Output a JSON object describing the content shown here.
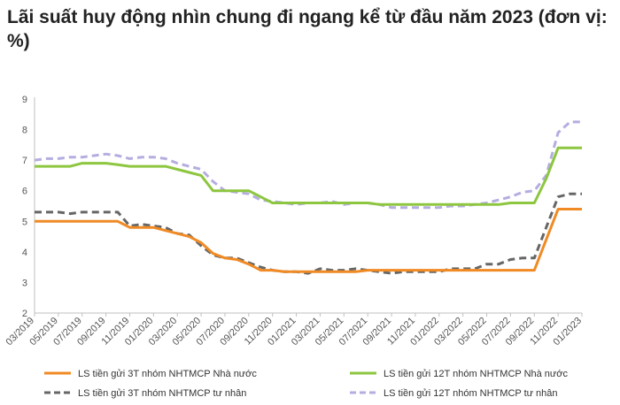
{
  "title": "Lãi suất huy động nhìn chung đi ngang kể từ đầu năm 2023 (đơn vị: %)",
  "chart_data": {
    "type": "line",
    "title": "Lãi suất huy động nhìn chung đi ngang kể từ đầu năm 2023 (đơn vị: %)",
    "xlabel": "",
    "ylabel": "",
    "ylim": [
      2,
      9
    ],
    "yticks": [
      "2",
      "3",
      "4",
      "5",
      "6",
      "7",
      "8",
      "9"
    ],
    "xticks": [
      "03/2019",
      "05/2019",
      "07/2019",
      "09/2019",
      "11/2019",
      "01/2020",
      "03/2020",
      "05/2020",
      "07/2020",
      "09/2020",
      "11/2020",
      "01/2021",
      "03/2021",
      "05/2021",
      "07/2021",
      "09/2021",
      "11/2021",
      "01/2022",
      "03/2022",
      "05/2022",
      "07/2022",
      "09/2022",
      "11/2022",
      "01/2023"
    ],
    "grid": false,
    "legend_position": "bottom",
    "x": [
      "03/2019",
      "04/2019",
      "05/2019",
      "06/2019",
      "07/2019",
      "08/2019",
      "09/2019",
      "10/2019",
      "11/2019",
      "12/2019",
      "01/2020",
      "02/2020",
      "03/2020",
      "04/2020",
      "05/2020",
      "06/2020",
      "07/2020",
      "08/2020",
      "09/2020",
      "10/2020",
      "11/2020",
      "12/2020",
      "01/2021",
      "02/2021",
      "03/2021",
      "04/2021",
      "05/2021",
      "06/2021",
      "07/2021",
      "08/2021",
      "09/2021",
      "10/2021",
      "11/2021",
      "12/2021",
      "01/2022",
      "02/2022",
      "03/2022",
      "04/2022",
      "05/2022",
      "06/2022",
      "07/2022",
      "08/2022",
      "09/2022",
      "10/2022",
      "11/2022",
      "12/2022",
      "01/2023"
    ],
    "series": [
      {
        "name": "LS tiền gửi 3T nhóm NHTMCP Nhà nước",
        "color": "#F08A24",
        "dash": "solid",
        "values": [
          5.0,
          5.0,
          5.0,
          5.0,
          5.0,
          5.0,
          5.0,
          5.0,
          4.8,
          4.8,
          4.8,
          4.7,
          4.6,
          4.5,
          4.3,
          3.95,
          3.8,
          3.75,
          3.6,
          3.4,
          3.4,
          3.35,
          3.35,
          3.35,
          3.35,
          3.35,
          3.35,
          3.35,
          3.4,
          3.4,
          3.4,
          3.4,
          3.4,
          3.4,
          3.4,
          3.4,
          3.4,
          3.4,
          3.4,
          3.4,
          3.4,
          3.4,
          3.4,
          4.4,
          5.4,
          5.4,
          5.4
        ]
      },
      {
        "name": "LS tiền gửi 12T nhóm NHTMCP Nhà nước",
        "color": "#8DC63F",
        "dash": "solid",
        "values": [
          6.8,
          6.8,
          6.8,
          6.8,
          6.9,
          6.9,
          6.9,
          6.85,
          6.8,
          6.8,
          6.8,
          6.8,
          6.7,
          6.6,
          6.5,
          6.0,
          6.0,
          6.0,
          6.0,
          5.8,
          5.6,
          5.6,
          5.6,
          5.6,
          5.6,
          5.6,
          5.6,
          5.6,
          5.6,
          5.55,
          5.55,
          5.55,
          5.55,
          5.55,
          5.55,
          5.55,
          5.55,
          5.55,
          5.55,
          5.55,
          5.6,
          5.6,
          5.6,
          6.4,
          7.4,
          7.4,
          7.4
        ]
      },
      {
        "name": "LS tiền gửi 3T nhóm NHTMCP tư nhân",
        "color": "#666666",
        "dash": "dashed",
        "values": [
          5.3,
          5.3,
          5.3,
          5.25,
          5.3,
          5.3,
          5.3,
          5.3,
          4.85,
          4.9,
          4.85,
          4.8,
          4.6,
          4.55,
          4.2,
          3.9,
          3.8,
          3.8,
          3.65,
          3.5,
          3.4,
          3.35,
          3.35,
          3.3,
          3.45,
          3.4,
          3.4,
          3.45,
          3.4,
          3.35,
          3.3,
          3.35,
          3.35,
          3.35,
          3.35,
          3.45,
          3.45,
          3.45,
          3.6,
          3.6,
          3.75,
          3.8,
          3.8,
          4.8,
          5.8,
          5.9,
          5.9
        ]
      },
      {
        "name": "LS tiền gửi 12T nhóm NHTMCP tư nhân",
        "color": "#B4AEE0",
        "dash": "dashed",
        "values": [
          7.0,
          7.05,
          7.05,
          7.1,
          7.1,
          7.15,
          7.2,
          7.15,
          7.05,
          7.1,
          7.1,
          7.05,
          6.9,
          6.8,
          6.7,
          6.3,
          6.0,
          5.95,
          5.9,
          5.7,
          5.65,
          5.6,
          5.55,
          5.6,
          5.6,
          5.65,
          5.55,
          5.6,
          5.6,
          5.55,
          5.45,
          5.45,
          5.45,
          5.45,
          5.45,
          5.5,
          5.5,
          5.55,
          5.6,
          5.7,
          5.8,
          5.95,
          6.0,
          6.5,
          7.9,
          8.25,
          8.25
        ]
      }
    ]
  }
}
